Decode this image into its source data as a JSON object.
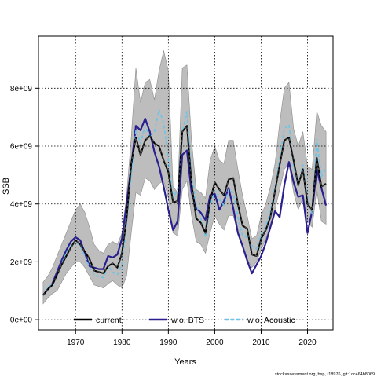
{
  "chart_data": {
    "type": "line",
    "title": "",
    "xlabel": "Years",
    "ylabel": "SSB",
    "xlim": [
      1962,
      2025.5
    ],
    "ylim": [
      -350000000.0,
      9800000000.0
    ],
    "xticks": [
      1970,
      1980,
      1990,
      2000,
      2010,
      2020
    ],
    "xtick_labels": [
      "1970",
      "1980",
      "1990",
      "2000",
      "2010",
      "2020"
    ],
    "yticks": [
      0,
      2000000000.0,
      4000000000.0,
      6000000000.0,
      8000000000.0
    ],
    "ytick_labels": [
      "0e+00",
      "2e+09",
      "4e+09",
      "6e+09",
      "8e+09"
    ],
    "grid": true,
    "legend_position": "bottom",
    "x": [
      1963,
      1964,
      1965,
      1966,
      1967,
      1968,
      1969,
      1970,
      1971,
      1972,
      1973,
      1974,
      1975,
      1976,
      1977,
      1978,
      1979,
      1980,
      1981,
      1982,
      1983,
      1984,
      1985,
      1986,
      1987,
      1988,
      1989,
      1990,
      1991,
      1992,
      1993,
      1994,
      1995,
      1996,
      1997,
      1998,
      1999,
      2000,
      2001,
      2002,
      2003,
      2004,
      2005,
      2006,
      2007,
      2008,
      2009,
      2010,
      2011,
      2012,
      2013,
      2014,
      2015,
      2016,
      2017,
      2018,
      2019,
      2020,
      2021,
      2022,
      2023,
      2024
    ],
    "band": {
      "name": "confidence interval",
      "upper": [
        1300000000.0,
        1500000000.0,
        1800000000.0,
        2200000000.0,
        2600000000.0,
        3000000000.0,
        3400000000.0,
        3800000000.0,
        4000000000.0,
        3700000000.0,
        3200000000.0,
        2600000000.0,
        2400000000.0,
        2300000000.0,
        2600000000.0,
        2700000000.0,
        2600000000.0,
        3000000000.0,
        4300000000.0,
        6300000000.0,
        8700000000.0,
        7500000000.0,
        8200000000.0,
        8300000000.0,
        7600000000.0,
        8600000000.0,
        9300000000.0,
        8600000000.0,
        4600000000.0,
        4400000000.0,
        8700000000.0,
        8800000000.0,
        6200000000.0,
        4500000000.0,
        4400000000.0,
        4200000000.0,
        5500000000.0,
        6000000000.0,
        5500000000.0,
        5400000000.0,
        6200000000.0,
        6200000000.0,
        5200000000.0,
        4300000000.0,
        3600000000.0,
        2800000000.0,
        2900000000.0,
        3600000000.0,
        4000000000.0,
        4600000000.0,
        5400000000.0,
        6800000000.0,
        8000000000.0,
        8200000000.0,
        6600000000.0,
        6000000000.0,
        6500000000.0,
        5300000000.0,
        5200000000.0,
        7200000000.0,
        6700000000.0,
        6500000000.0
      ],
      "lower": [
        550000000.0,
        750000000.0,
        900000000.0,
        1000000000.0,
        1300000000.0,
        1600000000.0,
        1800000000.0,
        2000000000.0,
        2000000000.0,
        1800000000.0,
        1500000000.0,
        1200000000.0,
        1150000000.0,
        1100000000.0,
        1250000000.0,
        1350000000.0,
        1200000000.0,
        1100000000.0,
        1500000000.0,
        3000000000.0,
        4400000000.0,
        4300000000.0,
        4900000000.0,
        4800000000.0,
        4500000000.0,
        4700000000.0,
        4800000000.0,
        4200000000.0,
        3000000000.0,
        2900000000.0,
        4500000000.0,
        4800000000.0,
        3600000000.0,
        2700000000.0,
        2600000000.0,
        2300000000.0,
        3000000000.0,
        3600000000.0,
        3300000000.0,
        3100000000.0,
        3600000000.0,
        3600000000.0,
        3000000000.0,
        2500000000.0,
        2100000000.0,
        1800000000.0,
        2000000000.0,
        2400000000.0,
        2800000000.0,
        3200000000.0,
        3800000000.0,
        4500000000.0,
        5200000000.0,
        5400000000.0,
        4400000000.0,
        3800000000.0,
        4200000000.0,
        3400000000.0,
        3200000000.0,
        4500000000.0,
        3400000000.0,
        3300000000.0
      ]
    },
    "series": [
      {
        "name": "current",
        "color": "#000000",
        "dashed": false,
        "values": [
          850000000.0,
          1050000000.0,
          1200000000.0,
          1550000000.0,
          1900000000.0,
          2200000000.0,
          2500000000.0,
          2750000000.0,
          2600000000.0,
          2350000000.0,
          2100000000.0,
          1700000000.0,
          1650000000.0,
          1600000000.0,
          1850000000.0,
          1950000000.0,
          1800000000.0,
          2300000000.0,
          3500000000.0,
          5400000000.0,
          6300000000.0,
          5700000000.0,
          6200000000.0,
          6350000000.0,
          6100000000.0,
          6000000000.0,
          5500000000.0,
          5100000000.0,
          4050000000.0,
          4100000000.0,
          6500000000.0,
          6700000000.0,
          4700000000.0,
          3500000000.0,
          3350000000.0,
          3000000000.0,
          4100000000.0,
          4750000000.0,
          4500000000.0,
          4300000000.0,
          4850000000.0,
          4900000000.0,
          4000000000.0,
          3250000000.0,
          3150000000.0,
          2250000000.0,
          2200000000.0,
          2800000000.0,
          3100000000.0,
          3550000000.0,
          4450000000.0,
          5350000000.0,
          6200000000.0,
          6300000000.0,
          5500000000.0,
          4650000000.0,
          5200000000.0,
          4000000000.0,
          3800000000.0,
          5600000000.0,
          4600000000.0,
          4700000000.0
        ]
      },
      {
        "name": "w.o. BTS",
        "color": "#2a1f8f",
        "dashed": false,
        "values": [
          850000000.0,
          1050000000.0,
          1250000000.0,
          1650000000.0,
          2050000000.0,
          2400000000.0,
          2700000000.0,
          2850000000.0,
          2750000000.0,
          2300000000.0,
          1850000000.0,
          1800000000.0,
          1750000000.0,
          1750000000.0,
          2200000000.0,
          2150000000.0,
          2250000000.0,
          2800000000.0,
          4000000000.0,
          5300000000.0,
          6700000000.0,
          6550000000.0,
          6950000000.0,
          6500000000.0,
          5800000000.0,
          5300000000.0,
          4600000000.0,
          3800000000.0,
          3100000000.0,
          3400000000.0,
          5700000000.0,
          5850000000.0,
          4400000000.0,
          3850000000.0,
          3700000000.0,
          3450000000.0,
          4300000000.0,
          4350000000.0,
          3800000000.0,
          4100000000.0,
          4550000000.0,
          3850000000.0,
          3000000000.0,
          2550000000.0,
          2050000000.0,
          1600000000.0,
          1900000000.0,
          2200000000.0,
          2650000000.0,
          3200000000.0,
          3750000000.0,
          3550000000.0,
          4650000000.0,
          5450000000.0,
          4750000000.0,
          4250000000.0,
          4300000000.0,
          3000000000.0,
          3750000000.0,
          5200000000.0,
          4550000000.0,
          3950000000.0
        ]
      },
      {
        "name": "w.o. Acoustic",
        "color": "#6ac3e8",
        "dashed": true,
        "values": [
          850000000.0,
          1100000000.0,
          1250000000.0,
          1550000000.0,
          1950000000.0,
          2300000000.0,
          2600000000.0,
          2700000000.0,
          2550000000.0,
          2200000000.0,
          1800000000.0,
          1550000000.0,
          1500000000.0,
          1450000000.0,
          1850000000.0,
          1650000000.0,
          1550000000.0,
          1900000000.0,
          3300000000.0,
          5000000000.0,
          6550000000.0,
          6100000000.0,
          6700000000.0,
          6300000000.0,
          6500000000.0,
          7250000000.0,
          6800000000.0,
          5500000000.0,
          4200000000.0,
          4500000000.0,
          6500000000.0,
          7200000000.0,
          4950000000.0,
          4000000000.0,
          3500000000.0,
          2850000000.0,
          3900000000.0,
          4450000000.0,
          4150000000.0,
          3950000000.0,
          4500000000.0,
          4400000000.0,
          3550000000.0,
          2900000000.0,
          2850000000.0,
          2550000000.0,
          2450000000.0,
          2950000000.0,
          3250000000.0,
          3750000000.0,
          4600000000.0,
          5600000000.0,
          6600000000.0,
          6750000000.0,
          5300000000.0,
          4600000000.0,
          5350000000.0,
          4250000000.0,
          3650000000.0,
          6250000000.0,
          4950000000.0,
          5250000000.0
        ]
      }
    ],
    "legend": [
      "current",
      "w.o. BTS",
      "w.o. Acoustic"
    ],
    "footer": "stockassessment.org, bsp, r18976, git:1cc464b8069"
  }
}
